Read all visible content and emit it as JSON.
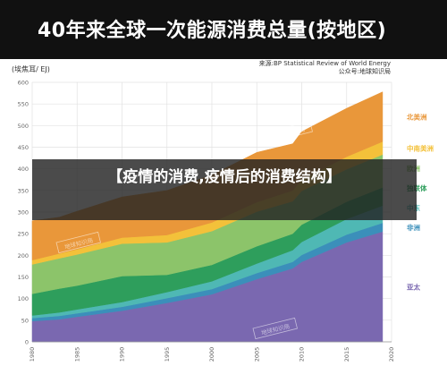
{
  "header": {
    "title": "40年来全球一次能源消费总量(按地区)"
  },
  "overlay": {
    "headline": "【疫情的消费,疫情后的消费结构】"
  },
  "source": {
    "line1": "来源:BP Statistical Review of World Energy",
    "line2": "公众号:地球知识局"
  },
  "watermark": {
    "text": "地球知识局"
  },
  "chart_data": {
    "type": "area",
    "stacked": true,
    "title": "40年来全球一次能源消费总量(按地区)",
    "ylabel": "(埃焦耳/ EJ)",
    "xlabel": "",
    "x": [
      1980,
      1983,
      1985,
      1990,
      1995,
      2000,
      2005,
      2009,
      2010,
      2015,
      2019
    ],
    "x_ticks": [
      "1980",
      "1985",
      "1990",
      "1995",
      "2000",
      "2005",
      "2010",
      "2015",
      "2020"
    ],
    "xlim": [
      1980,
      2020
    ],
    "ylim": [
      0,
      600
    ],
    "y_ticks": [
      "0",
      "50",
      "100",
      "150",
      "200",
      "250",
      "300",
      "350",
      "400",
      "450",
      "500",
      "550",
      "600"
    ],
    "grid": true,
    "legend_position": "right",
    "series": [
      {
        "name": "亚太",
        "color": "#7a68b0",
        "values": [
          48,
          52,
          58,
          72,
          90,
          110,
          145,
          170,
          185,
          230,
          255
        ]
      },
      {
        "name": "非洲",
        "color": "#3b8fba",
        "values": [
          7,
          8,
          8,
          9,
          11,
          12,
          14,
          15,
          16,
          18,
          20
        ]
      },
      {
        "name": "中东",
        "color": "#4fb8b4",
        "values": [
          6,
          8,
          9,
          11,
          14,
          18,
          22,
          27,
          30,
          36,
          40
        ]
      },
      {
        "name": "独联体",
        "color": "#2e9e5c",
        "values": [
          50,
          55,
          55,
          60,
          40,
          38,
          40,
          38,
          40,
          40,
          42
        ]
      },
      {
        "name": "欧洲",
        "color": "#8cc46a",
        "values": [
          68,
          70,
          72,
          75,
          75,
          78,
          80,
          75,
          78,
          75,
          76
        ]
      },
      {
        "name": "中南美洲",
        "color": "#f3c13a",
        "values": [
          10,
          11,
          12,
          14,
          17,
          20,
          22,
          25,
          26,
          29,
          30
        ]
      },
      {
        "name": "北美洲",
        "color": "#e9973a",
        "values": [
          91,
          84,
          88,
          94,
          103,
          110,
          115,
          108,
          111,
          112,
          115
        ]
      }
    ]
  }
}
